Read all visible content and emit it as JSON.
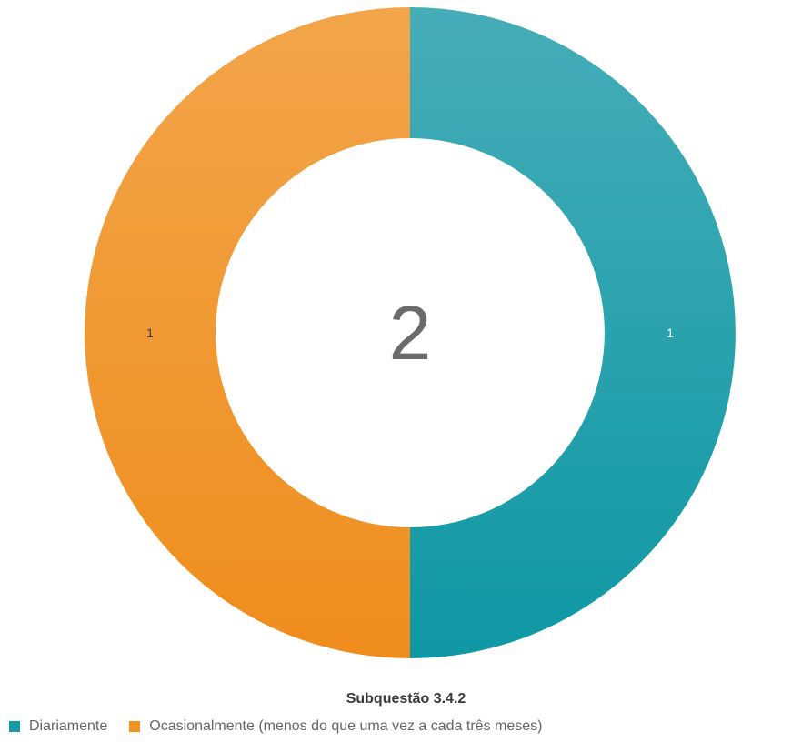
{
  "chart_data": {
    "type": "pie",
    "subtype": "donut",
    "title": "Subquestão 3.4.2",
    "center_label": "2",
    "slices": [
      {
        "label": "Diariamente",
        "value": 1,
        "color": "#1a9aa6"
      },
      {
        "label": "Ocasionalmente (menos do que uma vez a cada três meses)",
        "value": 1,
        "color": "#f0921f"
      }
    ],
    "data_labels": [
      "1",
      "1"
    ],
    "legend_position": "bottom"
  }
}
